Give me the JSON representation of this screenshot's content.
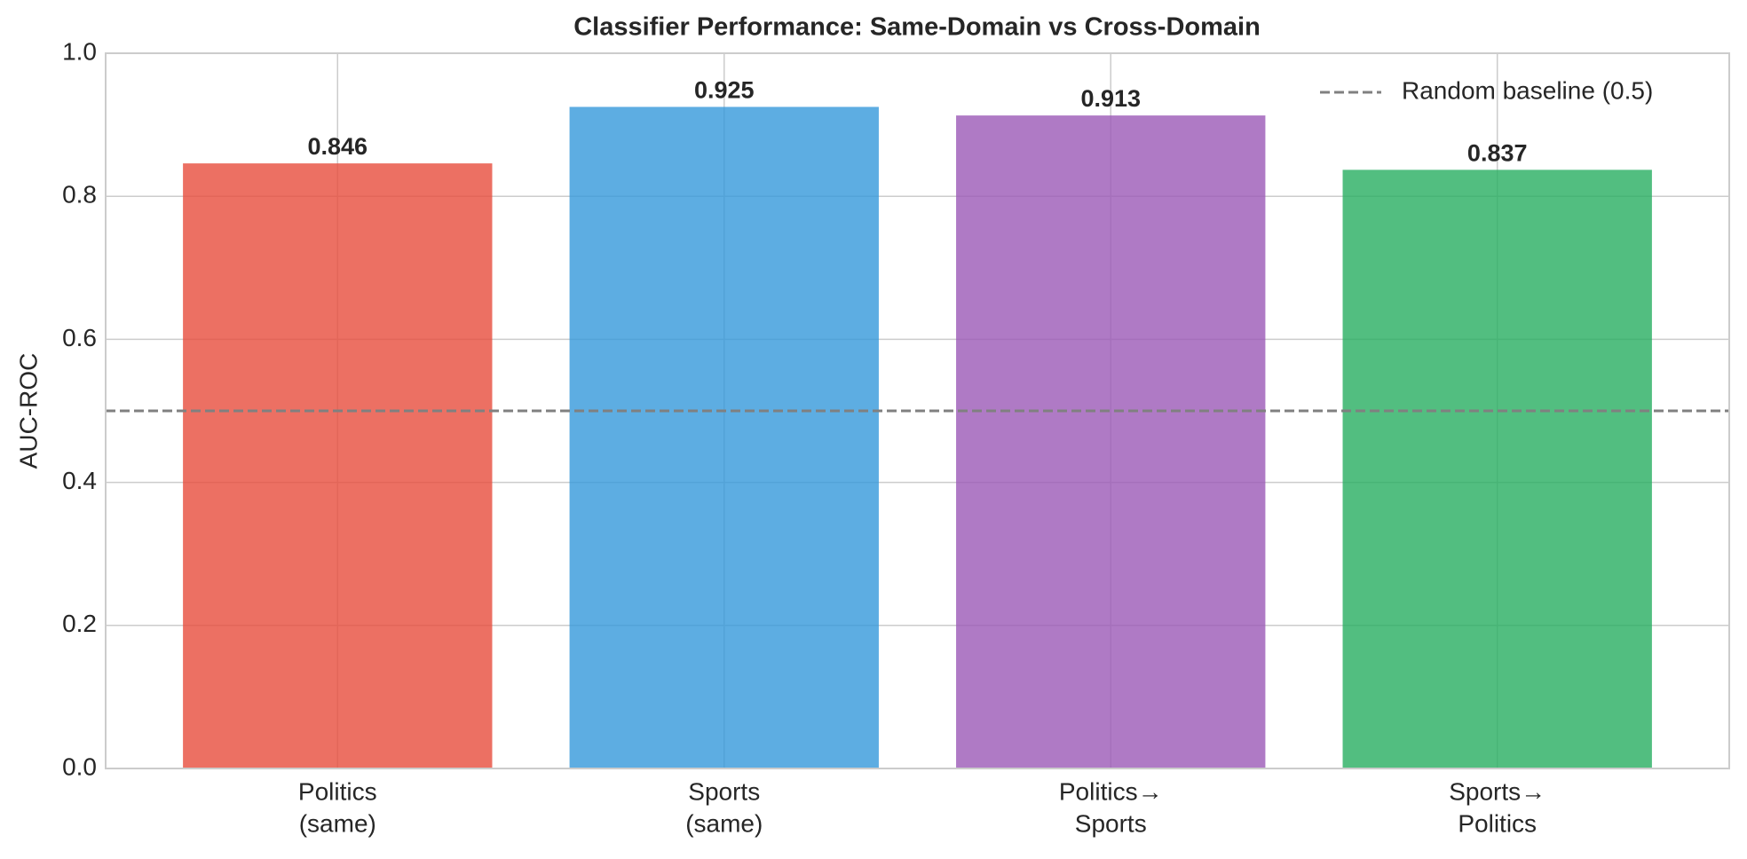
{
  "chart_data": {
    "type": "bar",
    "title": "Classifier Performance: Same-Domain vs Cross-Domain",
    "ylabel": "AUC-ROC",
    "categories": [
      [
        "Politics",
        "(same)"
      ],
      [
        "Sports",
        "(same)"
      ],
      [
        "Politics→",
        "Sports"
      ],
      [
        "Sports→",
        "Politics"
      ]
    ],
    "values": [
      0.846,
      0.925,
      0.913,
      0.837
    ],
    "colors": [
      "#e74c3c",
      "#3498db",
      "#9b59b6",
      "#27ae60"
    ],
    "ylim": [
      0,
      1
    ],
    "yticks": [
      {
        "value": 0,
        "label": "0.0"
      },
      0.2,
      0.4,
      0.6,
      0.8,
      {
        "value": 1,
        "label": "1.0"
      }
    ],
    "grid": true,
    "baseline": {
      "label": "Random baseline (0.5)",
      "value": 0.5,
      "color": "#808080"
    },
    "legend": "upper right"
  }
}
